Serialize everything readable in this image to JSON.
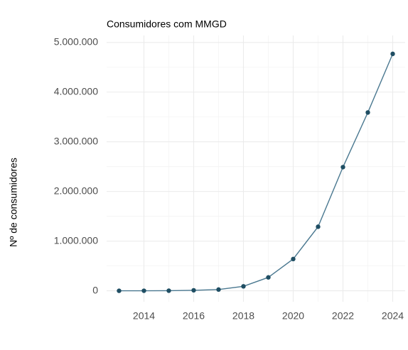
{
  "chart_data": {
    "type": "line",
    "title": "Consumidores com MMGD",
    "y_label": "Nº de consumidores",
    "x": [
      2013,
      2014,
      2015,
      2016,
      2017,
      2018,
      2019,
      2020,
      2021,
      2022,
      2023,
      2024
    ],
    "series": [
      {
        "name": "Consumidores",
        "color": "#4a7890",
        "marker_color": "#1f4e63",
        "values": [
          0,
          1000,
          2000,
          10000,
          25000,
          90000,
          270000,
          640000,
          1290000,
          2490000,
          3590000,
          4770000
        ]
      }
    ],
    "xlim": [
      2012.5,
      2024.5
    ],
    "xticks": [
      2014,
      2016,
      2018,
      2020,
      2022,
      2024
    ],
    "ylim": [
      -220000,
      5140000
    ],
    "yticks": [
      0,
      {
        "value": 1000000,
        "label": "1.000.000"
      },
      {
        "value": 2000000,
        "label": "2.000.000"
      },
      {
        "value": 3000000,
        "label": "3.000.000"
      },
      {
        "value": 4000000,
        "label": "4.000.000"
      },
      {
        "value": 5000000,
        "label": "5.000.000"
      }
    ],
    "grid": true
  }
}
